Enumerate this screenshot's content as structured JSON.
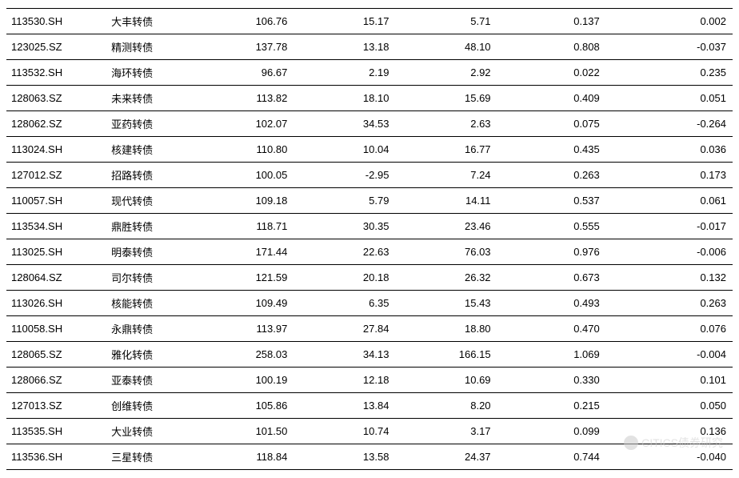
{
  "table": {
    "type": "table",
    "background_color": "#ffffff",
    "border_color": "#000000",
    "font_size": 13,
    "text_color": "#000000",
    "columns": [
      {
        "key": "code",
        "align": "left",
        "width": "14%"
      },
      {
        "key": "name",
        "align": "left",
        "width": "14%"
      },
      {
        "key": "v1",
        "align": "right",
        "width": "14%"
      },
      {
        "key": "v2",
        "align": "right",
        "width": "14%"
      },
      {
        "key": "v3",
        "align": "right",
        "width": "14%"
      },
      {
        "key": "v4",
        "align": "right",
        "width": "15%"
      },
      {
        "key": "v5",
        "align": "right",
        "width": "15%"
      }
    ],
    "rows": [
      {
        "code": "113530.SH",
        "name": "大丰转债",
        "v1": "106.76",
        "v2": "15.17",
        "v3": "5.71",
        "v4": "0.137",
        "v5": "0.002"
      },
      {
        "code": "123025.SZ",
        "name": "精测转债",
        "v1": "137.78",
        "v2": "13.18",
        "v3": "48.10",
        "v4": "0.808",
        "v5": "-0.037"
      },
      {
        "code": "113532.SH",
        "name": "海环转债",
        "v1": "96.67",
        "v2": "2.19",
        "v3": "2.92",
        "v4": "0.022",
        "v5": "0.235"
      },
      {
        "code": "128063.SZ",
        "name": "未来转债",
        "v1": "113.82",
        "v2": "18.10",
        "v3": "15.69",
        "v4": "0.409",
        "v5": "0.051"
      },
      {
        "code": "128062.SZ",
        "name": "亚药转债",
        "v1": "102.07",
        "v2": "34.53",
        "v3": "2.63",
        "v4": "0.075",
        "v5": "-0.264"
      },
      {
        "code": "113024.SH",
        "name": "核建转债",
        "v1": "110.80",
        "v2": "10.04",
        "v3": "16.77",
        "v4": "0.435",
        "v5": "0.036"
      },
      {
        "code": "127012.SZ",
        "name": "招路转债",
        "v1": "100.05",
        "v2": "-2.95",
        "v3": "7.24",
        "v4": "0.263",
        "v5": "0.173"
      },
      {
        "code": "110057.SH",
        "name": "现代转债",
        "v1": "109.18",
        "v2": "5.79",
        "v3": "14.11",
        "v4": "0.537",
        "v5": "0.061"
      },
      {
        "code": "113534.SH",
        "name": "鼎胜转债",
        "v1": "118.71",
        "v2": "30.35",
        "v3": "23.46",
        "v4": "0.555",
        "v5": "-0.017"
      },
      {
        "code": "113025.SH",
        "name": "明泰转债",
        "v1": "171.44",
        "v2": "22.63",
        "v3": "76.03",
        "v4": "0.976",
        "v5": "-0.006"
      },
      {
        "code": "128064.SZ",
        "name": "司尔转债",
        "v1": "121.59",
        "v2": "20.18",
        "v3": "26.32",
        "v4": "0.673",
        "v5": "0.132"
      },
      {
        "code": "113026.SH",
        "name": "核能转债",
        "v1": "109.49",
        "v2": "6.35",
        "v3": "15.43",
        "v4": "0.493",
        "v5": "0.263"
      },
      {
        "code": "110058.SH",
        "name": "永鼎转债",
        "v1": "113.97",
        "v2": "27.84",
        "v3": "18.80",
        "v4": "0.470",
        "v5": "0.076"
      },
      {
        "code": "128065.SZ",
        "name": "雅化转债",
        "v1": "258.03",
        "v2": "34.13",
        "v3": "166.15",
        "v4": "1.069",
        "v5": "-0.004"
      },
      {
        "code": "128066.SZ",
        "name": "亚泰转债",
        "v1": "100.19",
        "v2": "12.18",
        "v3": "10.69",
        "v4": "0.330",
        "v5": "0.101"
      },
      {
        "code": "127013.SZ",
        "name": "创维转债",
        "v1": "105.86",
        "v2": "13.84",
        "v3": "8.20",
        "v4": "0.215",
        "v5": "0.050"
      },
      {
        "code": "113535.SH",
        "name": "大业转债",
        "v1": "101.50",
        "v2": "10.74",
        "v3": "3.17",
        "v4": "0.099",
        "v5": "0.136"
      },
      {
        "code": "113536.SH",
        "name": "三星转债",
        "v1": "118.84",
        "v2": "13.58",
        "v3": "24.37",
        "v4": "0.744",
        "v5": "-0.040"
      }
    ]
  },
  "watermark": {
    "text": "CITICS债券研究",
    "color": "#cccccc",
    "font_size": 14
  }
}
